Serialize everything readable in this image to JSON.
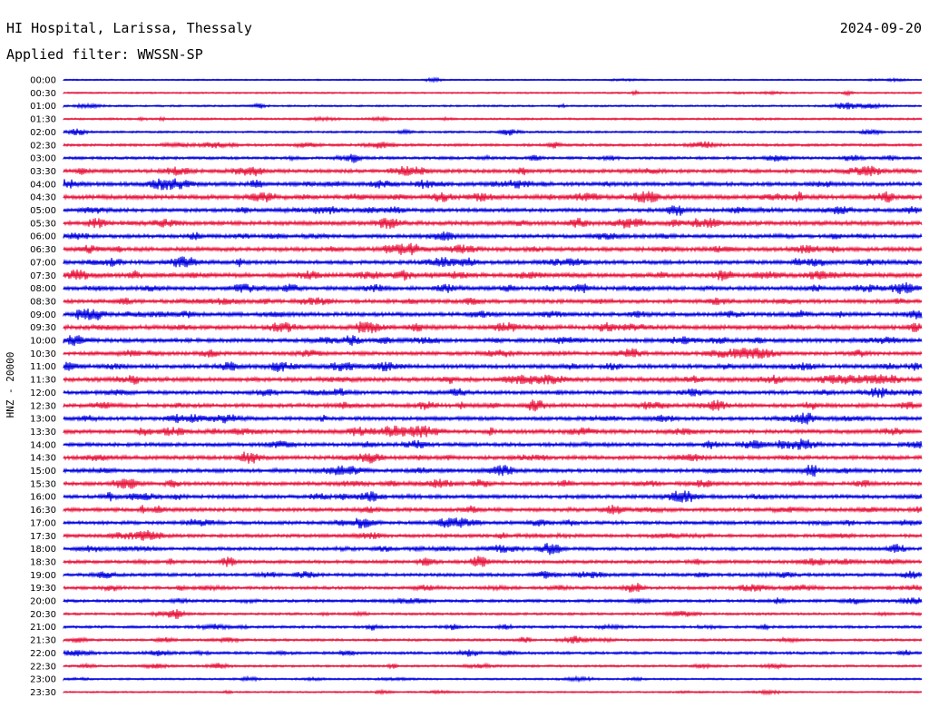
{
  "header": {
    "station": "HI Hospital, Larissa, Thessaly",
    "date": "2024-09-20",
    "filter": "Applied filter: WWSSN-SP"
  },
  "chart_data": {
    "type": "line",
    "title": "HI Hospital, Larissa, Thessaly",
    "subtitle": "Applied filter: WWSSN-SP",
    "ylabel": "HNZ - 20000",
    "xlabel": "",
    "row_labels": [
      "00:00",
      "00:30",
      "01:00",
      "01:30",
      "02:00",
      "02:30",
      "03:00",
      "03:30",
      "04:00",
      "04:30",
      "05:00",
      "05:30",
      "06:00",
      "06:30",
      "07:00",
      "07:30",
      "08:00",
      "08:30",
      "09:00",
      "09:30",
      "10:00",
      "10:30",
      "11:00",
      "11:30",
      "12:00",
      "12:30",
      "13:00",
      "13:30",
      "14:00",
      "14:30",
      "15:00",
      "15:30",
      "16:00",
      "16:30",
      "17:00",
      "17:30",
      "18:00",
      "18:30",
      "19:00",
      "19:30",
      "20:00",
      "20:30",
      "21:00",
      "21:30",
      "22:00",
      "22:30",
      "23:00",
      "23:30"
    ],
    "row_minutes": 30,
    "colors": [
      "#0000e0",
      "#e8143c"
    ],
    "activity_level": [
      0.15,
      0.2,
      0.25,
      0.3,
      0.3,
      0.45,
      0.5,
      0.7,
      0.75,
      0.85,
      0.7,
      0.85,
      0.7,
      0.8,
      0.75,
      0.9,
      0.75,
      0.75,
      0.75,
      0.85,
      0.75,
      0.7,
      0.8,
      0.85,
      0.7,
      0.75,
      0.7,
      0.75,
      0.7,
      0.75,
      0.7,
      0.7,
      0.7,
      0.7,
      0.65,
      0.6,
      0.6,
      0.6,
      0.6,
      0.55,
      0.5,
      0.4,
      0.45,
      0.4,
      0.45,
      0.35,
      0.25,
      0.2
    ]
  }
}
